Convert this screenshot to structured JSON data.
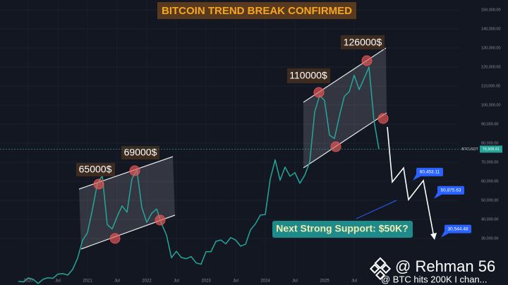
{
  "chart_data": {
    "type": "line",
    "title": "BITCOIN TREND BREAK CONFIRMED",
    "categories": [
      null,
      null,
      "2020",
      null,
      null,
      null,
      null,
      null,
      "Jul",
      null,
      null,
      null,
      null,
      null,
      "2021",
      null,
      null,
      null,
      null,
      null,
      "Jul",
      null,
      null,
      null,
      null,
      null,
      "2022",
      null,
      null,
      null,
      null,
      null,
      "Jul",
      null,
      null,
      null,
      null,
      null,
      "2023",
      null,
      null,
      null,
      null,
      null,
      "Jul",
      null,
      null,
      null,
      null,
      null,
      "2024",
      null,
      null,
      null,
      null,
      null,
      "Jul",
      null,
      null,
      null,
      null,
      null,
      "2025",
      null,
      null,
      null,
      null,
      null,
      "Jul",
      null,
      null,
      null,
      null,
      null
    ],
    "series": [
      {
        "name": "BTCUSDT",
        "color": "#26a69a",
        "values": [
          7500,
          7200,
          9300,
          8600,
          6400,
          8600,
          9400,
          9100,
          11300,
          11600,
          10800,
          13800,
          19700,
          29000,
          33100,
          45200,
          58900,
          63000,
          37300,
          35000,
          41500,
          47100,
          43800,
          61300,
          66000,
          46300,
          38500,
          43200,
          45500,
          37700,
          31800,
          19900,
          23300,
          20000,
          19400,
          20500,
          17200,
          16500,
          23100,
          23100,
          28500,
          29200,
          27200,
          30500,
          29200,
          26000,
          27000,
          34500,
          37700,
          42300,
          42600,
          61200,
          71300,
          60600,
          67500,
          62700,
          64600,
          59000,
          63300,
          70200,
          96400,
          105000,
          102400,
          84300,
          82500,
          94200,
          104600,
          107100,
          115700,
          108200,
          114000,
          120000,
          92000,
          76906
        ]
      }
    ],
    "ylim": [
      5600,
      155200
    ],
    "yticks": [
      {
        "value": 30000,
        "label": "30,000.00"
      },
      {
        "value": 40000,
        "label": "40,000.00"
      },
      {
        "value": 50000,
        "label": "50,000.00"
      },
      {
        "value": 60000,
        "label": "60,000.00"
      },
      {
        "value": 70000,
        "label": "70,000.00"
      },
      {
        "value": 80000,
        "label": "80,000.00"
      },
      {
        "value": 90000,
        "label": "90,000.00"
      },
      {
        "value": 100000,
        "label": "100,000.00"
      },
      {
        "value": 110000,
        "label": "110,000.00"
      },
      {
        "value": 120000,
        "label": "120,000.00"
      },
      {
        "value": 130000,
        "label": "130,000.00"
      },
      {
        "value": 140000,
        "label": "140,000.00"
      },
      {
        "value": 150000,
        "label": "150,000.00"
      }
    ],
    "grid": true,
    "annotations": [
      "65000$",
      "69000$",
      "110000$",
      "126000$",
      "Next Strong Support: $50K?"
    ],
    "price_tag": {
      "symbol": "BTCUSDT",
      "price": {
        "value": 76905.61,
        "label": "76,905.61"
      }
    },
    "targets": [
      {
        "value": 60453.11,
        "label": "60,453.11"
      },
      {
        "value": 50875.63,
        "label": "50,875.63"
      },
      {
        "value": 30544.48,
        "label": "30,544.48"
      }
    ]
  },
  "watermark": {
    "handle": "@ Rehman 56",
    "caption": "@ BTC hits 200K I chan..."
  }
}
